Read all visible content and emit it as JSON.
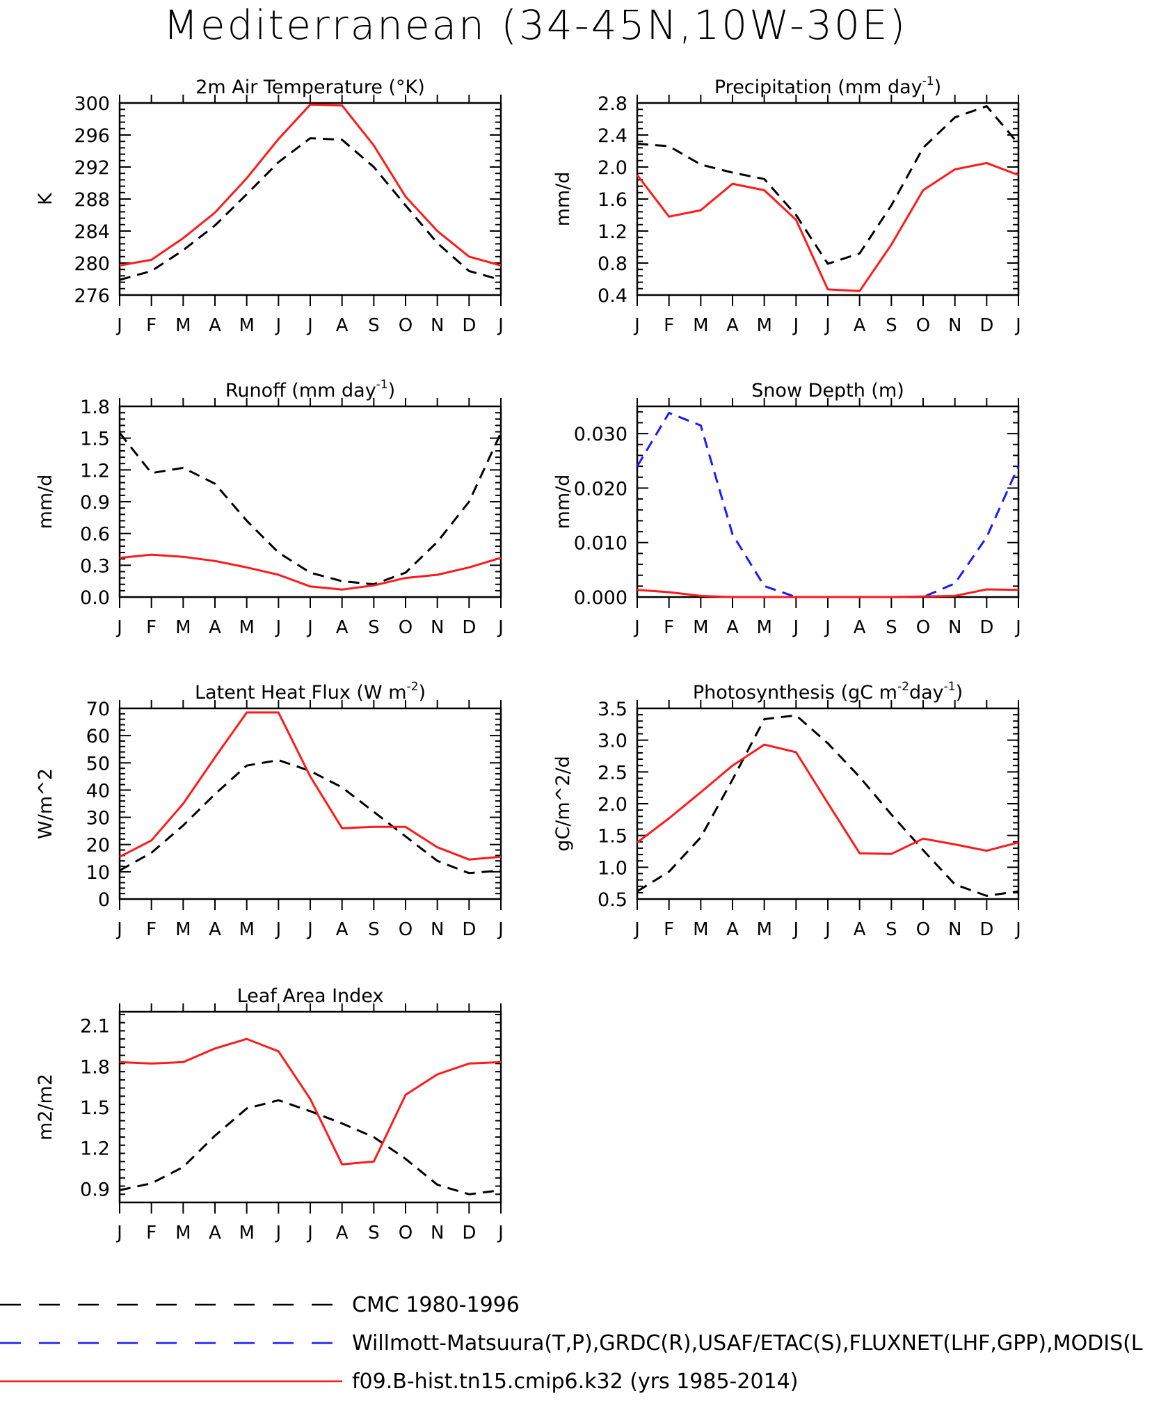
{
  "title": "Mediterranean (34-45N,10W-30E)",
  "months": [
    "J",
    "F",
    "M",
    "A",
    "M",
    "J",
    "J",
    "A",
    "S",
    "O",
    "N",
    "D",
    "J"
  ],
  "colors": {
    "obs": "#000000",
    "obs_alt": "#1a1aff",
    "model": "#ff1a1a"
  },
  "legend": [
    {
      "label": "CMC 1980-1996",
      "color": "#000000",
      "style": "dashed"
    },
    {
      "label": "Willmott-Matsuura(T,P),GRDC(R),USAF/ETAC(S),FLUXNET(LHF,GPP),MODIS(L",
      "color": "#1a1aff",
      "style": "dashed"
    },
    {
      "label": "f09.B-hist.tn15.cmip6.k32 (yrs 1985-2014)",
      "color": "#ff1a1a",
      "style": "solid"
    }
  ],
  "chart_data": [
    {
      "type": "line",
      "title": "2m Air Temperature (°K)",
      "ylabel": "K",
      "ylim": [
        276,
        300
      ],
      "yticks": [
        276,
        280,
        284,
        288,
        292,
        296,
        300
      ],
      "ytick_labels": [
        "276",
        "280",
        "284",
        "288",
        "292",
        "296",
        "300"
      ],
      "x": [
        "J",
        "F",
        "M",
        "A",
        "M",
        "J",
        "J",
        "A",
        "S",
        "O",
        "N",
        "D",
        "J"
      ],
      "series": [
        {
          "style": "dashed",
          "color": "#000000",
          "values": [
            277.9,
            279.0,
            281.6,
            284.7,
            288.6,
            292.6,
            295.6,
            295.4,
            292.0,
            287.2,
            282.5,
            279.0,
            277.9
          ]
        },
        {
          "style": "solid",
          "color": "#ff1a1a",
          "values": [
            279.7,
            280.4,
            283.1,
            286.3,
            290.6,
            295.5,
            299.8,
            299.7,
            294.7,
            288.3,
            284.0,
            280.8,
            279.7
          ]
        }
      ]
    },
    {
      "type": "line",
      "title": "Precipitation (mm day",
      "title_sup": "-1",
      "title_end": ")",
      "ylabel": "mm/d",
      "ylim": [
        0.4,
        2.8
      ],
      "yticks": [
        0.4,
        0.8,
        1.2,
        1.6,
        2.0,
        2.4,
        2.8
      ],
      "ytick_labels": [
        "0.4",
        "0.8",
        "1.2",
        "1.6",
        "2.0",
        "2.4",
        "2.8"
      ],
      "x": [
        "J",
        "F",
        "M",
        "A",
        "M",
        "J",
        "J",
        "A",
        "S",
        "O",
        "N",
        "D",
        "J"
      ],
      "series": [
        {
          "style": "dashed",
          "color": "#000000",
          "values": [
            2.29,
            2.26,
            2.03,
            1.93,
            1.85,
            1.4,
            0.79,
            0.92,
            1.52,
            2.24,
            2.62,
            2.76,
            2.29
          ]
        },
        {
          "style": "solid",
          "color": "#ff1a1a",
          "values": [
            1.9,
            1.38,
            1.46,
            1.79,
            1.71,
            1.34,
            0.47,
            0.45,
            1.03,
            1.71,
            1.97,
            2.05,
            1.9
          ]
        }
      ]
    },
    {
      "type": "line",
      "title": "Runoff (mm day",
      "title_sup": "-1",
      "title_end": ")",
      "ylabel": "mm/d",
      "ylim": [
        0.0,
        1.8
      ],
      "yticks": [
        0.0,
        0.3,
        0.6,
        0.9,
        1.2,
        1.5,
        1.8
      ],
      "ytick_labels": [
        "0.0",
        "0.3",
        "0.6",
        "0.9",
        "1.2",
        "1.5",
        "1.8"
      ],
      "x": [
        "J",
        "F",
        "M",
        "A",
        "M",
        "J",
        "J",
        "A",
        "S",
        "O",
        "N",
        "D",
        "J"
      ],
      "series": [
        {
          "style": "dashed",
          "color": "#000000",
          "values": [
            1.55,
            1.17,
            1.22,
            1.07,
            0.72,
            0.42,
            0.23,
            0.15,
            0.12,
            0.23,
            0.52,
            0.9,
            1.55
          ]
        },
        {
          "style": "solid",
          "color": "#ff1a1a",
          "values": [
            0.37,
            0.4,
            0.38,
            0.34,
            0.28,
            0.21,
            0.1,
            0.07,
            0.11,
            0.18,
            0.21,
            0.28,
            0.37
          ]
        }
      ]
    },
    {
      "type": "line",
      "title": "Snow Depth (m)",
      "ylabel": "mm/d",
      "ylim": [
        0.0,
        0.035
      ],
      "yticks": [
        0.0,
        0.01,
        0.02,
        0.03
      ],
      "ytick_labels": [
        "0.000",
        "0.010",
        "0.020",
        "0.030"
      ],
      "x": [
        "J",
        "F",
        "M",
        "A",
        "M",
        "J",
        "J",
        "A",
        "S",
        "O",
        "N",
        "D",
        "J"
      ],
      "series": [
        {
          "style": "dashed",
          "color": "#1a1aff",
          "values": [
            0.024,
            0.0338,
            0.0315,
            0.0115,
            0.002,
            0.0,
            0.0,
            0.0,
            0.0,
            0.0,
            0.0025,
            0.011,
            0.024
          ]
        },
        {
          "style": "solid",
          "color": "#ff1a1a",
          "values": [
            0.0013,
            0.0009,
            0.0002,
            0.0,
            0.0,
            0.0,
            0.0,
            0.0,
            0.0,
            0.0001,
            0.0002,
            0.0014,
            0.0013
          ]
        }
      ]
    },
    {
      "type": "line",
      "title": "Latent Heat Flux (W m",
      "title_sup": "-2",
      "title_end": ")",
      "ylabel": "W/m^2",
      "ylim": [
        0,
        70
      ],
      "yticks": [
        0,
        10,
        20,
        30,
        40,
        50,
        60,
        70
      ],
      "ytick_labels": [
        "0",
        "10",
        "20",
        "30",
        "40",
        "50",
        "60",
        "70"
      ],
      "x": [
        "J",
        "F",
        "M",
        "A",
        "M",
        "J",
        "J",
        "A",
        "S",
        "O",
        "N",
        "D",
        "J"
      ],
      "series": [
        {
          "style": "dashed",
          "color": "#000000",
          "values": [
            10.5,
            17.0,
            27.0,
            38.5,
            49.0,
            51.0,
            47.0,
            41.0,
            32.0,
            23.0,
            14.0,
            9.5,
            10.5
          ]
        },
        {
          "style": "solid",
          "color": "#ff1a1a",
          "values": [
            15.5,
            21.5,
            35.0,
            52.0,
            68.5,
            68.5,
            45.0,
            26.0,
            26.5,
            26.5,
            19.0,
            14.5,
            15.5
          ]
        }
      ]
    },
    {
      "type": "line",
      "title": "Photosynthesis (gC m",
      "title_sup": "-2",
      "title_mid": "day",
      "title_sup2": "-1",
      "title_end": ")",
      "ylabel": "gC/m^2/d",
      "ylim": [
        0.5,
        3.5
      ],
      "yticks": [
        0.5,
        1.0,
        1.5,
        2.0,
        2.5,
        3.0,
        3.5
      ],
      "ytick_labels": [
        "0.5",
        "1.0",
        "1.5",
        "2.0",
        "2.5",
        "3.0",
        "3.5"
      ],
      "x": [
        "J",
        "F",
        "M",
        "A",
        "M",
        "J",
        "J",
        "A",
        "S",
        "O",
        "N",
        "D",
        "J"
      ],
      "series": [
        {
          "style": "dashed",
          "color": "#000000",
          "values": [
            0.62,
            0.93,
            1.47,
            2.38,
            3.33,
            3.39,
            2.95,
            2.42,
            1.83,
            1.27,
            0.73,
            0.55,
            0.62
          ]
        },
        {
          "style": "solid",
          "color": "#ff1a1a",
          "values": [
            1.39,
            1.77,
            2.18,
            2.6,
            2.93,
            2.81,
            2.01,
            1.22,
            1.21,
            1.45,
            1.36,
            1.26,
            1.39
          ]
        }
      ]
    },
    {
      "type": "line",
      "title": "Leaf Area Index",
      "ylabel": "m2/m2",
      "ylim": [
        0.8,
        2.2
      ],
      "yticks": [
        0.9,
        1.2,
        1.5,
        1.8,
        2.1
      ],
      "ytick_labels": [
        "0.9",
        "1.2",
        "1.5",
        "1.8",
        "2.1"
      ],
      "x": [
        "J",
        "F",
        "M",
        "A",
        "M",
        "J",
        "J",
        "A",
        "S",
        "O",
        "N",
        "D",
        "J"
      ],
      "series": [
        {
          "style": "dashed",
          "color": "#000000",
          "values": [
            0.89,
            0.94,
            1.06,
            1.29,
            1.49,
            1.55,
            1.47,
            1.38,
            1.28,
            1.12,
            0.93,
            0.86,
            0.89
          ]
        },
        {
          "style": "solid",
          "color": "#ff1a1a",
          "values": [
            1.83,
            1.82,
            1.83,
            1.93,
            2.0,
            1.91,
            1.56,
            1.08,
            1.1,
            1.59,
            1.74,
            1.82,
            1.83
          ]
        }
      ]
    }
  ]
}
